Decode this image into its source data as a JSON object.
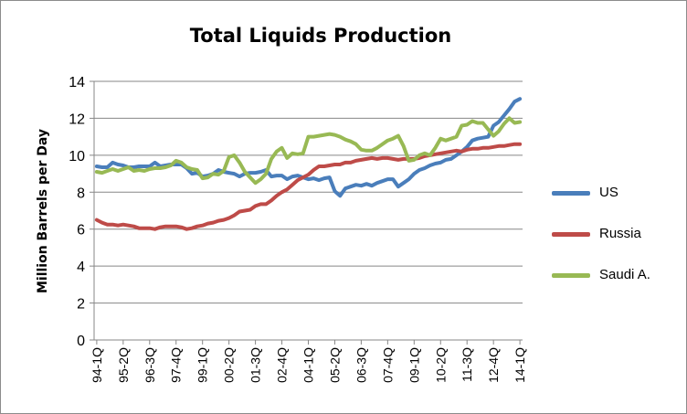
{
  "chart_data": {
    "type": "line",
    "title": "Total Liquids Production",
    "xlabel": "",
    "ylabel": "Million Barrels per Day",
    "ylim": [
      0,
      14
    ],
    "yticks": [
      "0",
      "2",
      "4",
      "6",
      "8",
      "10",
      "12",
      "14"
    ],
    "xtick_labels": [
      "94-1Q",
      "95-2Q",
      "96-3Q",
      "97-4Q",
      "99-1Q",
      "00-2Q",
      "01-3Q",
      "02-4Q",
      "04-1Q",
      "05-2Q",
      "06-3Q",
      "07-4Q",
      "09-1Q",
      "10-2Q",
      "11-3Q",
      "12-4Q",
      "14-1Q"
    ],
    "legend_position": "right",
    "grid": "horizontal",
    "x": [
      "94-1Q",
      "94-2Q",
      "94-3Q",
      "94-4Q",
      "95-1Q",
      "95-2Q",
      "95-3Q",
      "95-4Q",
      "96-1Q",
      "96-2Q",
      "96-3Q",
      "96-4Q",
      "97-1Q",
      "97-2Q",
      "97-3Q",
      "97-4Q",
      "98-1Q",
      "98-2Q",
      "98-3Q",
      "98-4Q",
      "99-1Q",
      "99-2Q",
      "99-3Q",
      "99-4Q",
      "00-1Q",
      "00-2Q",
      "00-3Q",
      "00-4Q",
      "01-1Q",
      "01-2Q",
      "01-3Q",
      "01-4Q",
      "02-1Q",
      "02-2Q",
      "02-3Q",
      "02-4Q",
      "03-1Q",
      "03-2Q",
      "03-3Q",
      "03-4Q",
      "04-1Q",
      "04-2Q",
      "04-3Q",
      "04-4Q",
      "05-1Q",
      "05-2Q",
      "05-3Q",
      "05-4Q",
      "06-1Q",
      "06-2Q",
      "06-3Q",
      "06-4Q",
      "07-1Q",
      "07-2Q",
      "07-3Q",
      "07-4Q",
      "08-1Q",
      "08-2Q",
      "08-3Q",
      "08-4Q",
      "09-1Q",
      "09-2Q",
      "09-3Q",
      "09-4Q",
      "10-1Q",
      "10-2Q",
      "10-3Q",
      "10-4Q",
      "11-1Q",
      "11-2Q",
      "11-3Q",
      "11-4Q",
      "12-1Q",
      "12-2Q",
      "12-3Q",
      "12-4Q",
      "13-1Q",
      "13-2Q",
      "13-3Q",
      "13-4Q",
      "14-1Q"
    ],
    "series": [
      {
        "name": "US",
        "color": "#4a7ebb",
        "values": [
          9.4,
          9.35,
          9.35,
          9.6,
          9.5,
          9.45,
          9.35,
          9.35,
          9.4,
          9.4,
          9.4,
          9.6,
          9.4,
          9.45,
          9.5,
          9.5,
          9.5,
          9.3,
          9.0,
          9.05,
          8.85,
          8.9,
          9.0,
          9.2,
          9.1,
          9.05,
          9.0,
          8.85,
          9.0,
          9.05,
          9.05,
          9.1,
          9.2,
          8.85,
          8.9,
          8.9,
          8.7,
          8.85,
          8.9,
          8.8,
          8.7,
          8.75,
          8.65,
          8.75,
          8.8,
          8.05,
          7.8,
          8.2,
          8.3,
          8.4,
          8.35,
          8.45,
          8.35,
          8.5,
          8.6,
          8.7,
          8.7,
          8.3,
          8.5,
          8.7,
          9.0,
          9.2,
          9.3,
          9.45,
          9.55,
          9.6,
          9.75,
          9.8,
          10.0,
          10.2,
          10.45,
          10.8,
          10.9,
          10.95,
          11.0,
          11.6,
          11.8,
          12.15,
          12.5,
          12.9,
          13.05
        ]
      },
      {
        "name": "Russia",
        "color": "#be4b48",
        "values": [
          6.5,
          6.35,
          6.25,
          6.25,
          6.2,
          6.25,
          6.2,
          6.15,
          6.05,
          6.05,
          6.05,
          6.0,
          6.1,
          6.15,
          6.15,
          6.15,
          6.1,
          6.0,
          6.05,
          6.15,
          6.2,
          6.3,
          6.35,
          6.45,
          6.5,
          6.6,
          6.75,
          6.95,
          7.0,
          7.05,
          7.25,
          7.35,
          7.35,
          7.55,
          7.8,
          8.0,
          8.15,
          8.4,
          8.65,
          8.8,
          8.95,
          9.2,
          9.4,
          9.4,
          9.45,
          9.5,
          9.5,
          9.6,
          9.6,
          9.7,
          9.75,
          9.8,
          9.85,
          9.8,
          9.85,
          9.85,
          9.8,
          9.75,
          9.8,
          9.8,
          9.8,
          9.85,
          9.95,
          10.0,
          10.05,
          10.1,
          10.15,
          10.2,
          10.25,
          10.2,
          10.3,
          10.35,
          10.35,
          10.4,
          10.4,
          10.45,
          10.5,
          10.5,
          10.55,
          10.6,
          10.6
        ]
      },
      {
        "name": "Saudi A.",
        "color": "#98b954",
        "values": [
          9.1,
          9.05,
          9.15,
          9.25,
          9.15,
          9.25,
          9.35,
          9.15,
          9.2,
          9.15,
          9.25,
          9.3,
          9.3,
          9.35,
          9.45,
          9.7,
          9.6,
          9.35,
          9.25,
          9.2,
          8.75,
          8.8,
          9.0,
          8.95,
          9.15,
          9.9,
          10.0,
          9.6,
          9.1,
          8.8,
          8.5,
          8.7,
          9.0,
          9.8,
          10.2,
          10.4,
          9.85,
          10.1,
          10.05,
          10.1,
          11.0,
          11.0,
          11.05,
          11.1,
          11.15,
          11.1,
          11.0,
          10.85,
          10.75,
          10.6,
          10.3,
          10.25,
          10.25,
          10.4,
          10.6,
          10.8,
          10.9,
          11.05,
          10.5,
          9.7,
          9.75,
          10.0,
          10.1,
          10.0,
          10.4,
          10.9,
          10.8,
          10.9,
          11.0,
          11.6,
          11.65,
          11.85,
          11.75,
          11.75,
          11.4,
          11.05,
          11.3,
          11.7,
          12.0,
          11.75,
          11.8
        ]
      }
    ]
  }
}
